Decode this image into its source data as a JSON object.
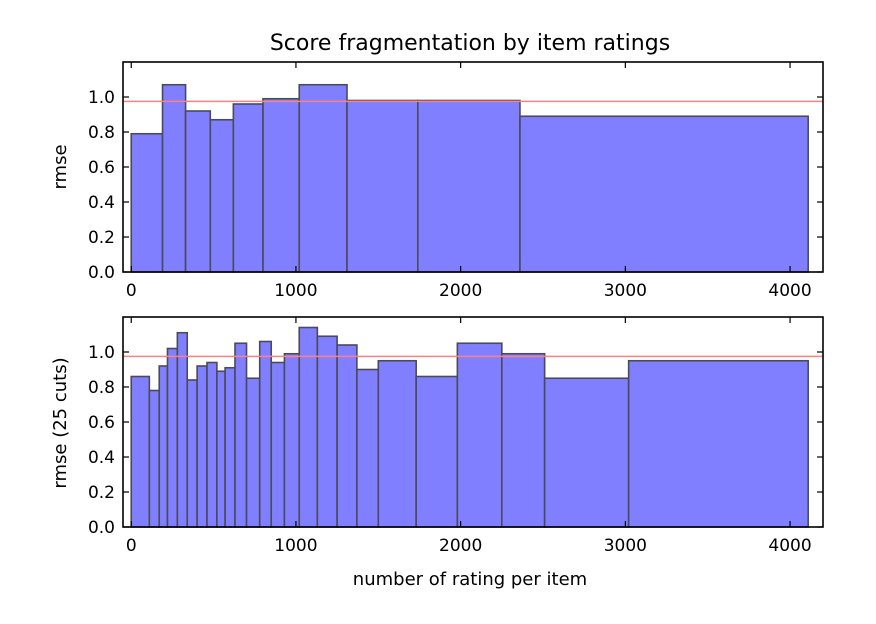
{
  "chart_data": [
    {
      "type": "bar",
      "title": "Score fragmentation by item ratings",
      "xlabel": "",
      "ylabel": "rmse",
      "xlim": [
        -50,
        4200
      ],
      "ylim": [
        0,
        1.2
      ],
      "xticks": [
        0,
        1000,
        2000,
        3000,
        4000
      ],
      "yticks": [
        0.0,
        0.2,
        0.4,
        0.6,
        0.8,
        1.0
      ],
      "reference_line": 0.975,
      "colors": {
        "bar_fill": "#7f7fff",
        "bar_edge": "#4a4a5a",
        "reference_line": "#ff8080"
      },
      "bins": [
        {
          "x0": 0,
          "x1": 190,
          "value": 0.79
        },
        {
          "x0": 190,
          "x1": 330,
          "value": 1.07
        },
        {
          "x0": 330,
          "x1": 480,
          "value": 0.92
        },
        {
          "x0": 480,
          "x1": 620,
          "value": 0.87
        },
        {
          "x0": 620,
          "x1": 800,
          "value": 0.96
        },
        {
          "x0": 800,
          "x1": 1020,
          "value": 0.99
        },
        {
          "x0": 1020,
          "x1": 1310,
          "value": 1.07
        },
        {
          "x0": 1310,
          "x1": 1740,
          "value": 0.98
        },
        {
          "x0": 1740,
          "x1": 2360,
          "value": 0.98
        },
        {
          "x0": 2360,
          "x1": 4110,
          "value": 0.89
        }
      ]
    },
    {
      "type": "bar",
      "title": "",
      "xlabel": "number of rating per item",
      "ylabel": "rmse (25 cuts)",
      "xlim": [
        -50,
        4200
      ],
      "ylim": [
        0,
        1.2
      ],
      "xticks": [
        0,
        1000,
        2000,
        3000,
        4000
      ],
      "yticks": [
        0.0,
        0.2,
        0.4,
        0.6,
        0.8,
        1.0
      ],
      "reference_line": 0.975,
      "colors": {
        "bar_fill": "#7f7fff",
        "bar_edge": "#4a4a5a",
        "reference_line": "#ff8080"
      },
      "bins": [
        {
          "x0": 0,
          "x1": 110,
          "value": 0.86
        },
        {
          "x0": 110,
          "x1": 170,
          "value": 0.78
        },
        {
          "x0": 170,
          "x1": 220,
          "value": 0.92
        },
        {
          "x0": 220,
          "x1": 280,
          "value": 1.02
        },
        {
          "x0": 280,
          "x1": 340,
          "value": 1.11
        },
        {
          "x0": 340,
          "x1": 400,
          "value": 0.84
        },
        {
          "x0": 400,
          "x1": 460,
          "value": 0.92
        },
        {
          "x0": 460,
          "x1": 520,
          "value": 0.94
        },
        {
          "x0": 520,
          "x1": 570,
          "value": 0.89
        },
        {
          "x0": 570,
          "x1": 630,
          "value": 0.91
        },
        {
          "x0": 630,
          "x1": 700,
          "value": 1.05
        },
        {
          "x0": 700,
          "x1": 780,
          "value": 0.85
        },
        {
          "x0": 780,
          "x1": 850,
          "value": 1.06
        },
        {
          "x0": 850,
          "x1": 930,
          "value": 0.94
        },
        {
          "x0": 930,
          "x1": 1020,
          "value": 0.99
        },
        {
          "x0": 1020,
          "x1": 1130,
          "value": 1.14
        },
        {
          "x0": 1130,
          "x1": 1250,
          "value": 1.09
        },
        {
          "x0": 1250,
          "x1": 1370,
          "value": 1.04
        },
        {
          "x0": 1370,
          "x1": 1500,
          "value": 0.9
        },
        {
          "x0": 1500,
          "x1": 1730,
          "value": 0.95
        },
        {
          "x0": 1730,
          "x1": 1980,
          "value": 0.86
        },
        {
          "x0": 1980,
          "x1": 2250,
          "value": 1.05
        },
        {
          "x0": 2250,
          "x1": 2510,
          "value": 0.99
        },
        {
          "x0": 2510,
          "x1": 3020,
          "value": 0.85
        },
        {
          "x0": 3020,
          "x1": 4110,
          "value": 0.95
        }
      ]
    }
  ]
}
